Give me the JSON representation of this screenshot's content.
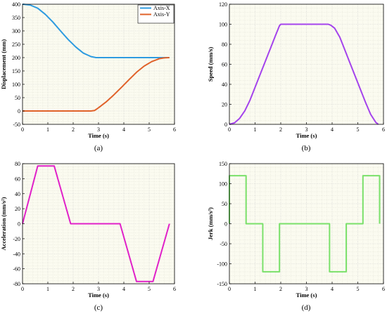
{
  "chart_data": [
    {
      "type": "line",
      "panel_label": "(a)",
      "xlabel": "Time (s)",
      "ylabel": "Displacement (mm)",
      "xlim": [
        0,
        6
      ],
      "ylim": [
        -50,
        400
      ],
      "xticks": [
        "0",
        "1",
        "2",
        "3",
        "4",
        "5",
        "6"
      ],
      "yticks": [
        "-50",
        "0",
        "50",
        "100",
        "150",
        "200",
        "250",
        "300",
        "350",
        "400"
      ],
      "grid": true,
      "legend_position": "top-right",
      "series": [
        {
          "name": "Axis-X",
          "color": "#2e9be0",
          "x": [
            0,
            0.3,
            0.6,
            0.9,
            1.2,
            1.5,
            1.8,
            2.1,
            2.4,
            2.7,
            2.9,
            3.05,
            3.2,
            4.0,
            5.0,
            5.8
          ],
          "y": [
            400,
            397,
            385,
            362,
            333,
            300,
            268,
            240,
            217,
            204,
            200,
            200,
            200,
            200,
            200,
            200
          ]
        },
        {
          "name": "Axis-Y",
          "color": "#e0622a",
          "x": [
            0,
            1.0,
            2.0,
            2.7,
            2.85,
            3.0,
            3.3,
            3.6,
            3.9,
            4.2,
            4.5,
            4.8,
            5.1,
            5.4,
            5.6,
            5.8
          ],
          "y": [
            0,
            0,
            0,
            0,
            2,
            12,
            34,
            60,
            88,
            117,
            145,
            168,
            185,
            196,
            199,
            200
          ]
        }
      ]
    },
    {
      "type": "line",
      "panel_label": "(b)",
      "xlabel": "Time (s)",
      "ylabel": "Speed (mm/s)",
      "xlim": [
        0,
        6
      ],
      "ylim": [
        0,
        120
      ],
      "xticks": [
        "0",
        "1",
        "2",
        "3",
        "4",
        "5",
        "6"
      ],
      "yticks": [
        "0",
        "20",
        "40",
        "60",
        "80",
        "100",
        "120"
      ],
      "grid": true,
      "series": [
        {
          "color": "#a443ec",
          "x": [
            0,
            0.2,
            0.4,
            0.6,
            0.8,
            1.0,
            1.2,
            1.4,
            1.6,
            1.8,
            1.95,
            2.0,
            3.85,
            3.95,
            4.1,
            4.3,
            4.5,
            4.7,
            4.9,
            5.1,
            5.3,
            5.5,
            5.7,
            5.8
          ],
          "y": [
            0,
            1.5,
            6,
            13.5,
            24,
            37,
            50,
            63,
            76,
            89,
            98.5,
            100,
            100,
            99,
            96,
            87,
            74,
            61,
            48,
            35,
            22,
            10,
            2,
            0
          ]
        }
      ]
    },
    {
      "type": "line",
      "panel_label": "(c)",
      "xlabel": "Time (s)",
      "ylabel": "Acceleration (mm/s²)",
      "xlim": [
        0,
        6
      ],
      "ylim": [
        -80,
        80
      ],
      "xticks": [
        "0",
        "1",
        "2",
        "3",
        "4",
        "5",
        "6"
      ],
      "yticks": [
        "-80",
        "-60",
        "-40",
        "-20",
        "0",
        "20",
        "40",
        "60",
        "80"
      ],
      "grid": true,
      "series": [
        {
          "color": "#e020c8",
          "x": [
            0,
            0.6,
            1.25,
            1.9,
            3.85,
            4.5,
            5.15,
            5.8
          ],
          "y": [
            0,
            77,
            77,
            0,
            0,
            -77,
            -77,
            0
          ]
        }
      ]
    },
    {
      "type": "line",
      "panel_label": "(d)",
      "xlabel": "Time (s)",
      "ylabel": "Jerk (mm/s³)",
      "xlim": [
        0,
        6
      ],
      "ylim": [
        -150,
        150
      ],
      "xticks": [
        "0",
        "1",
        "2",
        "3",
        "4",
        "5",
        "6"
      ],
      "yticks": [
        "-150",
        "-100",
        "-50",
        "0",
        "50",
        "100",
        "150"
      ],
      "grid": true,
      "series": [
        {
          "color": "#7ae06a",
          "x": [
            0,
            0,
            0.65,
            0.65,
            1.3,
            1.3,
            1.95,
            1.95,
            3.9,
            3.9,
            4.55,
            4.55,
            5.2,
            5.2,
            5.85,
            5.85
          ],
          "y": [
            0,
            120,
            120,
            0,
            0,
            -120,
            -120,
            0,
            0,
            -120,
            -120,
            0,
            0,
            120,
            120,
            0
          ]
        }
      ]
    }
  ]
}
